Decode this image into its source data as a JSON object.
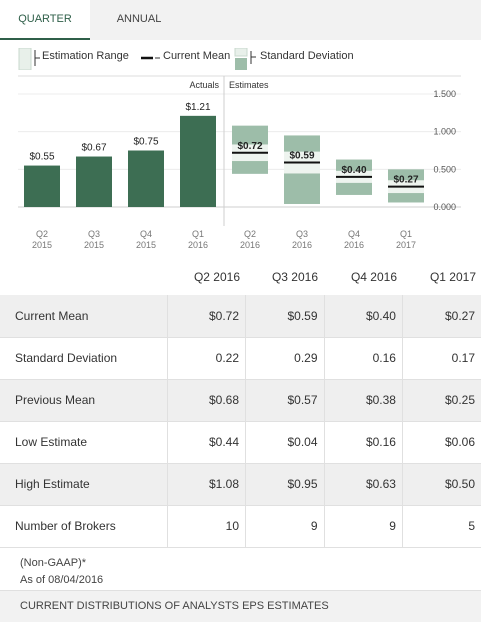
{
  "tabs": [
    {
      "label": "QUARTER",
      "active": true
    },
    {
      "label": "ANNUAL",
      "active": false
    }
  ],
  "legend": {
    "range": "Estimation Range",
    "mean": "Current Mean",
    "std": "Standard Deviation"
  },
  "chart_data": {
    "type": "bar",
    "sections": {
      "actuals": "Actuals",
      "estimates": "Estimates"
    },
    "y_ticks": [
      "1.500",
      "1.000",
      "0.500",
      "0.000"
    ],
    "ylim": [
      0,
      1.5
    ],
    "actuals": [
      {
        "q": "Q2",
        "y": "2015",
        "value": 0.55,
        "label": "$0.55"
      },
      {
        "q": "Q3",
        "y": "2015",
        "value": 0.67,
        "label": "$0.67"
      },
      {
        "q": "Q4",
        "y": "2015",
        "value": 0.75,
        "label": "$0.75"
      },
      {
        "q": "Q1",
        "y": "2016",
        "value": 1.21,
        "label": "$1.21"
      }
    ],
    "estimates": [
      {
        "q": "Q2",
        "y": "2016",
        "mean": 0.72,
        "std": 0.22,
        "low": 0.44,
        "high": 1.08,
        "label": "$0.72"
      },
      {
        "q": "Q3",
        "y": "2016",
        "mean": 0.59,
        "std": 0.29,
        "low": 0.04,
        "high": 0.95,
        "label": "$0.59"
      },
      {
        "q": "Q4",
        "y": "2016",
        "mean": 0.4,
        "std": 0.16,
        "low": 0.16,
        "high": 0.63,
        "label": "$0.40"
      },
      {
        "q": "Q1",
        "y": "2017",
        "mean": 0.27,
        "std": 0.17,
        "low": 0.06,
        "high": 0.5,
        "label": "$0.27"
      }
    ],
    "colors": {
      "actual": "#3d6e53",
      "range": "#9dbda9",
      "std": "#eef4ef",
      "mean": "#111111"
    }
  },
  "table": {
    "headers": [
      "Q2 2016",
      "Q3 2016",
      "Q4 2016",
      "Q1 2017"
    ],
    "rows": [
      {
        "label": "Current Mean",
        "values": [
          "$0.72",
          "$0.59",
          "$0.40",
          "$0.27"
        ]
      },
      {
        "label": "Standard Deviation",
        "values": [
          "0.22",
          "0.29",
          "0.16",
          "0.17"
        ]
      },
      {
        "label": "Previous Mean",
        "values": [
          "$0.68",
          "$0.57",
          "$0.38",
          "$0.25"
        ]
      },
      {
        "label": "Low Estimate",
        "values": [
          "$0.44",
          "$0.04",
          "$0.16",
          "$0.06"
        ]
      },
      {
        "label": "High Estimate",
        "values": [
          "$1.08",
          "$0.95",
          "$0.63",
          "$0.50"
        ]
      },
      {
        "label": "Number of Brokers",
        "values": [
          "10",
          "9",
          "9",
          "5"
        ]
      }
    ]
  },
  "notes": {
    "gaap": "(Non-GAAP)*",
    "asof": "As of 08/04/2016"
  },
  "footer": "CURRENT DISTRIBUTIONS OF ANALYSTS EPS ESTIMATES"
}
